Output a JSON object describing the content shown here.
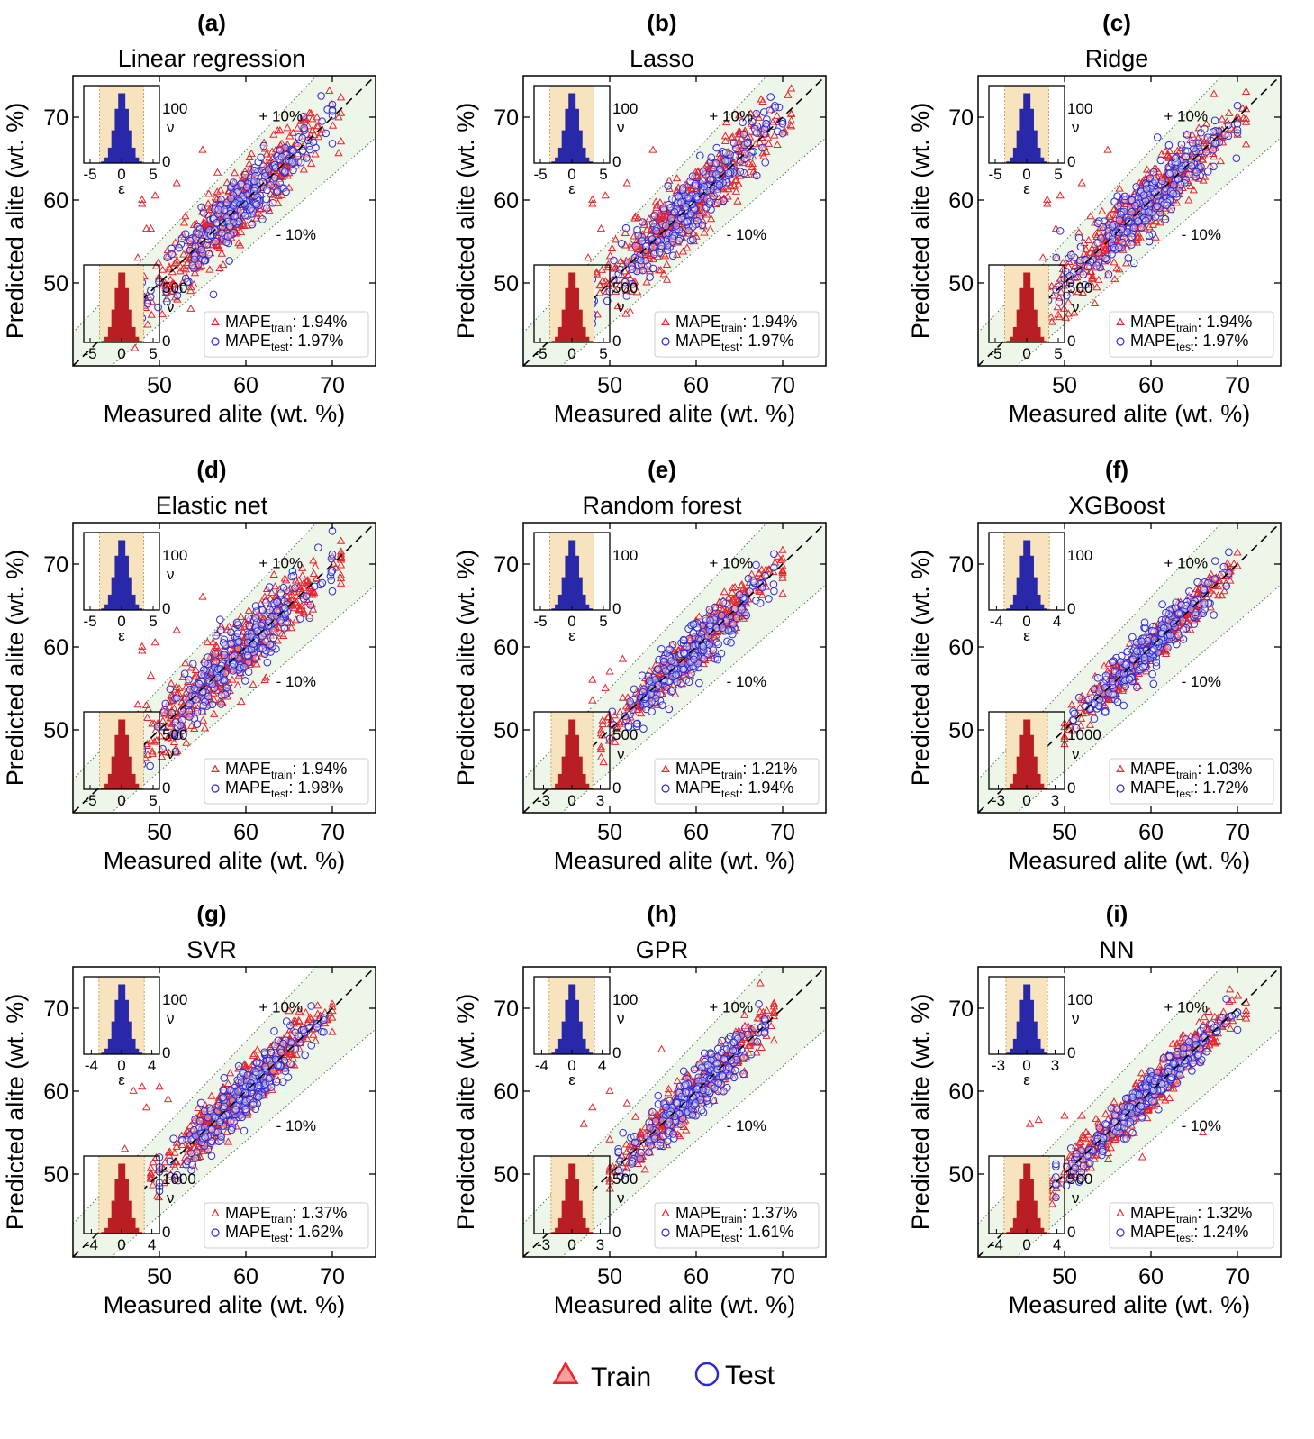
{
  "chart_data": [
    {
      "type": "scatter",
      "letter": "(a)",
      "title": "Linear regression",
      "xlabel": "Measured alite (wt. %)",
      "ylabel": "Predicted alite (wt. %)",
      "xlim": [
        40,
        75
      ],
      "ylim": [
        40,
        75
      ],
      "xticks": [
        "50",
        "60",
        "70"
      ],
      "yticks": [
        "50",
        "60",
        "70"
      ],
      "band_labels": [
        "+ 10%",
        "- 10%"
      ],
      "train_spread": 2.0,
      "test_spread": 1.9,
      "x_range": [
        47,
        71
      ],
      "outliers": [
        [
          48,
          60
        ],
        [
          48,
          59.5
        ],
        [
          49.5,
          60.5
        ],
        [
          52,
          62
        ],
        [
          55,
          66
        ],
        [
          53,
          58
        ],
        [
          49,
          56.5
        ],
        [
          48.5,
          56.5
        ],
        [
          47.5,
          53
        ]
      ],
      "series": [
        {
          "name": "MAPE",
          "subscript": "train",
          "value": ": 1.94%",
          "marker": "triangle",
          "color": "#e8242c"
        },
        {
          "name": "MAPE",
          "subscript": "test",
          "value": ": 1.97%",
          "marker": "circle",
          "color": "#2a2ad4"
        }
      ],
      "inset_test": {
        "xticks": [
          "-5",
          "0",
          "5"
        ],
        "xmax": 6,
        "yticks": [
          "100",
          "0"
        ],
        "xlabel": "ε",
        "nu_mark": "ν",
        "band": 3.5
      },
      "inset_train": {
        "xticks": [
          "-5",
          "0",
          "5"
        ],
        "xmax": 6,
        "yticks": [
          "500",
          "0"
        ],
        "nu_mark": "ν",
        "band": 3.5
      }
    },
    {
      "type": "scatter",
      "letter": "(b)",
      "title": "Lasso",
      "xlabel": "Measured alite (wt. %)",
      "ylabel": "Predicted alite (wt. %)",
      "xlim": [
        40,
        75
      ],
      "ylim": [
        40,
        75
      ],
      "xticks": [
        "50",
        "60",
        "70"
      ],
      "yticks": [
        "50",
        "60",
        "70"
      ],
      "band_labels": [
        "+ 10%",
        "- 10%"
      ],
      "train_spread": 2.0,
      "test_spread": 1.9,
      "x_range": [
        47,
        71
      ],
      "outliers": [
        [
          48,
          60
        ],
        [
          48,
          59.5
        ],
        [
          49.5,
          60.5
        ],
        [
          52,
          62
        ],
        [
          55,
          66
        ],
        [
          53,
          58
        ],
        [
          49,
          56.5
        ],
        [
          47.5,
          53
        ]
      ],
      "series": [
        {
          "name": "MAPE",
          "subscript": "train",
          "value": ": 1.94%",
          "marker": "triangle",
          "color": "#e8242c"
        },
        {
          "name": "MAPE",
          "subscript": "test",
          "value": ": 1.97%",
          "marker": "circle",
          "color": "#2a2ad4"
        }
      ],
      "inset_test": {
        "xticks": [
          "-5",
          "0",
          "5"
        ],
        "xmax": 6,
        "yticks": [
          "100",
          "0"
        ],
        "xlabel": "ε",
        "nu_mark": "ν",
        "band": 3.5
      },
      "inset_train": {
        "xticks": [
          "-5",
          "0",
          "5"
        ],
        "xmax": 6,
        "yticks": [
          "500",
          "0"
        ],
        "nu_mark": "ν",
        "band": 3.5
      }
    },
    {
      "type": "scatter",
      "letter": "(c)",
      "title": "Ridge",
      "xlabel": "Measured alite (wt. %)",
      "ylabel": "Predicted alite (wt. %)",
      "xlim": [
        40,
        75
      ],
      "ylim": [
        40,
        75
      ],
      "xticks": [
        "50",
        "60",
        "70"
      ],
      "yticks": [
        "50",
        "60",
        "70"
      ],
      "band_labels": [
        "+ 10%",
        "- 10%"
      ],
      "train_spread": 2.0,
      "test_spread": 1.9,
      "x_range": [
        47,
        71
      ],
      "outliers": [
        [
          48,
          60
        ],
        [
          48,
          59.5
        ],
        [
          49.5,
          60.5
        ],
        [
          52,
          62
        ],
        [
          55,
          66
        ],
        [
          53,
          58
        ],
        [
          49,
          56.5
        ],
        [
          47.5,
          53
        ]
      ],
      "series": [
        {
          "name": "MAPE",
          "subscript": "train",
          "value": ": 1.94%",
          "marker": "triangle",
          "color": "#e8242c"
        },
        {
          "name": "MAPE",
          "subscript": "test",
          "value": ": 1.97%",
          "marker": "circle",
          "color": "#2a2ad4"
        }
      ],
      "inset_test": {
        "xticks": [
          "-5",
          "0",
          "5"
        ],
        "xmax": 6,
        "yticks": [
          "100",
          "0"
        ],
        "xlabel": "ε",
        "nu_mark": "ν",
        "band": 3.5
      },
      "inset_train": {
        "xticks": [
          "-5",
          "0",
          "5"
        ],
        "xmax": 6,
        "yticks": [
          "500",
          "0"
        ],
        "nu_mark": "ν",
        "band": 3.5
      }
    },
    {
      "type": "scatter",
      "letter": "(d)",
      "title": "Elastic net",
      "xlabel": "Measured alite (wt. %)",
      "ylabel": "Predicted alite (wt. %)",
      "xlim": [
        40,
        75
      ],
      "ylim": [
        40,
        75
      ],
      "xticks": [
        "50",
        "60",
        "70"
      ],
      "yticks": [
        "50",
        "60",
        "70"
      ],
      "band_labels": [
        "+ 10%",
        "- 10%"
      ],
      "train_spread": 2.0,
      "test_spread": 1.9,
      "x_range": [
        47,
        71
      ],
      "outliers": [
        [
          48,
          60
        ],
        [
          48,
          59.5
        ],
        [
          49.5,
          60.5
        ],
        [
          52,
          62
        ],
        [
          55,
          66
        ],
        [
          53,
          58
        ],
        [
          49,
          56.5
        ],
        [
          47.5,
          53
        ]
      ],
      "series": [
        {
          "name": "MAPE",
          "subscript": "train",
          "value": ": 1.94%",
          "marker": "triangle",
          "color": "#e8242c"
        },
        {
          "name": "MAPE",
          "subscript": "test",
          "value": ": 1.98%",
          "marker": "circle",
          "color": "#2a2ad4"
        }
      ],
      "inset_test": {
        "xticks": [
          "-5",
          "0",
          "5"
        ],
        "xmax": 6,
        "yticks": [
          "100",
          "0"
        ],
        "xlabel": "ε",
        "nu_mark": "ν",
        "band": 3.5
      },
      "inset_train": {
        "xticks": [
          "-5",
          "0",
          "5"
        ],
        "xmax": 6,
        "yticks": [
          "500",
          "0"
        ],
        "nu_mark": "ν",
        "band": 3.5
      }
    },
    {
      "type": "scatter",
      "letter": "(e)",
      "title": "Random forest",
      "xlabel": "Measured alite (wt. %)",
      "ylabel": "Predicted alite (wt. %)",
      "xlim": [
        40,
        75
      ],
      "ylim": [
        40,
        75
      ],
      "xticks": [
        "50",
        "60",
        "70"
      ],
      "yticks": [
        "50",
        "60",
        "70"
      ],
      "band_labels": [
        "+ 10%",
        "- 10%"
      ],
      "train_spread": 1.2,
      "test_spread": 1.6,
      "x_range": [
        49,
        70
      ],
      "outliers": [
        [
          48,
          56
        ],
        [
          49.5,
          55
        ],
        [
          48,
          53.5
        ],
        [
          50,
          57
        ],
        [
          55,
          56.5
        ],
        [
          51.5,
          58.5
        ]
      ],
      "series": [
        {
          "name": "MAPE",
          "subscript": "train",
          "value": ": 1.21%",
          "marker": "triangle",
          "color": "#e8242c"
        },
        {
          "name": "MAPE",
          "subscript": "test",
          "value": ": 1.94%",
          "marker": "circle",
          "color": "#2a2ad4"
        }
      ],
      "inset_test": {
        "xticks": [
          "-5",
          "0",
          "5"
        ],
        "xmax": 6,
        "yticks": [
          "100",
          "0"
        ],
        "xlabel": "ε",
        "nu_mark": "",
        "band": 3.5
      },
      "inset_train": {
        "xticks": [
          "-3",
          "0",
          "3"
        ],
        "xmax": 4,
        "yticks": [
          "500",
          "0"
        ],
        "nu_mark": "ν",
        "band": 2.2
      }
    },
    {
      "type": "scatter",
      "letter": "(f)",
      "title": "XGBoost",
      "xlabel": "Measured alite (wt. %)",
      "ylabel": "Predicted alite (wt. %)",
      "xlim": [
        40,
        75
      ],
      "ylim": [
        40,
        75
      ],
      "xticks": [
        "50",
        "60",
        "70"
      ],
      "yticks": [
        "50",
        "60",
        "70"
      ],
      "band_labels": [
        "+ 10%",
        "- 10%"
      ],
      "train_spread": 1.0,
      "test_spread": 1.4,
      "x_range": [
        50,
        70
      ],
      "outliers": [
        [
          52,
          54
        ],
        [
          53,
          54.5
        ],
        [
          55,
          57
        ],
        [
          53.5,
          55
        ]
      ],
      "series": [
        {
          "name": "MAPE",
          "subscript": "train",
          "value": ": 1.03%",
          "marker": "triangle",
          "color": "#e8242c"
        },
        {
          "name": "MAPE",
          "subscript": "test",
          "value": ": 1.72%",
          "marker": "circle",
          "color": "#2a2ad4"
        }
      ],
      "inset_test": {
        "xticks": [
          "-4",
          "0",
          "4"
        ],
        "xmax": 5,
        "yticks": [
          "100",
          "0"
        ],
        "xlabel": "ε",
        "nu_mark": "",
        "band": 3.0
      },
      "inset_train": {
        "xticks": [
          "-3",
          "0",
          "3"
        ],
        "xmax": 4,
        "yticks": [
          "1000",
          "0"
        ],
        "nu_mark": "ν",
        "band": 2.2
      }
    },
    {
      "type": "scatter",
      "letter": "(g)",
      "title": "SVR",
      "xlabel": "Measured alite (wt. %)",
      "ylabel": "Predicted alite (wt. %)",
      "xlim": [
        40,
        75
      ],
      "ylim": [
        40,
        75
      ],
      "xticks": [
        "50",
        "60",
        "70"
      ],
      "yticks": [
        "50",
        "60",
        "70"
      ],
      "band_labels": [
        "+ 10%",
        "- 10%"
      ],
      "train_spread": 1.4,
      "test_spread": 1.6,
      "x_range": [
        49,
        70
      ],
      "outliers": [
        [
          47,
          60
        ],
        [
          48,
          60.5
        ],
        [
          51,
          59
        ],
        [
          50,
          60.5
        ],
        [
          48.5,
          58
        ],
        [
          46,
          53
        ]
      ],
      "series": [
        {
          "name": "MAPE",
          "subscript": "train",
          "value": ": 1.37%",
          "marker": "triangle",
          "color": "#e8242c"
        },
        {
          "name": "MAPE",
          "subscript": "test",
          "value": ": 1.62%",
          "marker": "circle",
          "color": "#2a2ad4"
        }
      ],
      "inset_test": {
        "xticks": [
          "-4",
          "0",
          "4"
        ],
        "xmax": 5,
        "yticks": [
          "100",
          "0"
        ],
        "xlabel": "ε",
        "nu_mark": "ν",
        "band": 3.0
      },
      "inset_train": {
        "xticks": [
          "-4",
          "0",
          "4"
        ],
        "xmax": 5,
        "yticks": [
          "1000",
          "0"
        ],
        "nu_mark": "ν",
        "band": 3.0
      }
    },
    {
      "type": "scatter",
      "letter": "(h)",
      "title": "GPR",
      "xlabel": "Measured alite (wt. %)",
      "ylabel": "Predicted alite (wt. %)",
      "xlim": [
        40,
        75
      ],
      "ylim": [
        40,
        75
      ],
      "xticks": [
        "50",
        "60",
        "70"
      ],
      "yticks": [
        "50",
        "60",
        "70"
      ],
      "band_labels": [
        "+ 10%",
        "- 10%"
      ],
      "train_spread": 1.3,
      "test_spread": 1.5,
      "x_range": [
        50,
        69
      ],
      "outliers": [
        [
          48,
          58
        ],
        [
          50,
          60
        ],
        [
          47,
          56
        ],
        [
          52,
          58.5
        ],
        [
          56,
          65
        ]
      ],
      "series": [
        {
          "name": "MAPE",
          "subscript": "train",
          "value": ": 1.37%",
          "marker": "triangle",
          "color": "#e8242c"
        },
        {
          "name": "MAPE",
          "subscript": "test",
          "value": ": 1.61%",
          "marker": "circle",
          "color": "#2a2ad4"
        }
      ],
      "inset_test": {
        "xticks": [
          "-4",
          "0",
          "4"
        ],
        "xmax": 5,
        "yticks": [
          "100",
          "0"
        ],
        "xlabel": "ε",
        "nu_mark": "ν",
        "band": 3.0
      },
      "inset_train": {
        "xticks": [
          "-3",
          "0",
          "3"
        ],
        "xmax": 4,
        "yticks": [
          "500",
          "0"
        ],
        "nu_mark": "ν",
        "band": 2.2
      }
    },
    {
      "type": "scatter",
      "letter": "(i)",
      "title": "NN",
      "xlabel": "Measured alite (wt. %)",
      "ylabel": "Predicted alite (wt. %)",
      "xlim": [
        40,
        75
      ],
      "ylim": [
        40,
        75
      ],
      "xticks": [
        "50",
        "60",
        "70"
      ],
      "yticks": [
        "50",
        "60",
        "70"
      ],
      "band_labels": [
        "+ 10%",
        "- 10%"
      ],
      "train_spread": 1.3,
      "test_spread": 1.2,
      "x_range": [
        48,
        71
      ],
      "outliers": [
        [
          46,
          56
        ],
        [
          47,
          56.5
        ],
        [
          50,
          57
        ],
        [
          52,
          57
        ],
        [
          54,
          56
        ],
        [
          52.5,
          55
        ],
        [
          59,
          52
        ],
        [
          66,
          55
        ]
      ],
      "series": [
        {
          "name": "MAPE",
          "subscript": "train",
          "value": ": 1.32%",
          "marker": "triangle",
          "color": "#e8242c"
        },
        {
          "name": "MAPE",
          "subscript": "test",
          "value": ": 1.24%",
          "marker": "circle",
          "color": "#2a2ad4"
        }
      ],
      "inset_test": {
        "xticks": [
          "-3",
          "0",
          "3"
        ],
        "xmax": 4,
        "yticks": [
          "100",
          "0"
        ],
        "xlabel": "ε",
        "nu_mark": "ν",
        "band": 2.2
      },
      "inset_train": {
        "xticks": [
          "-4",
          "0",
          "4"
        ],
        "xmax": 5,
        "yticks": [
          "500",
          "0"
        ],
        "nu_mark": "ν",
        "band": 3.0
      }
    }
  ],
  "legend": {
    "items": [
      {
        "label": "Train",
        "marker": "triangle",
        "color": "#e8242c",
        "fill": "#f6a0a0"
      },
      {
        "label": "Test",
        "marker": "circle",
        "color": "#2a2ad4",
        "fill": "#ffffff"
      }
    ]
  },
  "colors": {
    "train": "#e8242c",
    "test": "#2a2ad4",
    "hist_test": "#2828a8",
    "hist_train": "#b81e22",
    "band_fill": "#eef5e9",
    "inset_band": "#f7e3bd"
  }
}
